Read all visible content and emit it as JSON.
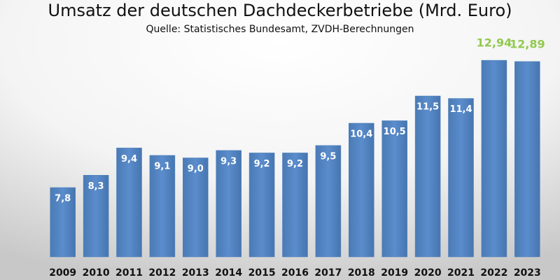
{
  "chart_data": {
    "type": "bar",
    "title": "Umsatz der deutschen Dachdeckerbetriebe (Mrd. Euro)",
    "subtitle": "Quelle: Statistisches Bundesamt, ZVDH-Berechnungen",
    "categories": [
      "2009",
      "2010",
      "2011",
      "2012",
      "2013",
      "2014",
      "2015",
      "2016",
      "2017",
      "2018",
      "2019",
      "2020",
      "2021",
      "2022",
      "2023"
    ],
    "values": [
      7.8,
      8.3,
      9.4,
      9.1,
      9.0,
      9.3,
      9.2,
      9.2,
      9.5,
      10.4,
      10.5,
      11.5,
      11.4,
      12.94,
      12.89
    ],
    "value_labels": [
      "7,8",
      "8,3",
      "9,4",
      "9,1",
      "9,0",
      "9,3",
      "9,2",
      "9,2",
      "9,5",
      "10,4",
      "10,5",
      "11,5",
      "11,4",
      "12,94",
      "12,89"
    ],
    "label_colors": [
      "#ffffff",
      "#ffffff",
      "#ffffff",
      "#ffffff",
      "#ffffff",
      "#ffffff",
      "#ffffff",
      "#ffffff",
      "#ffffff",
      "#ffffff",
      "#ffffff",
      "#ffffff",
      "#ffffff",
      "#92c94e",
      "#92c94e"
    ],
    "color": "#4f81bd",
    "ylim": [
      5,
      13
    ]
  }
}
